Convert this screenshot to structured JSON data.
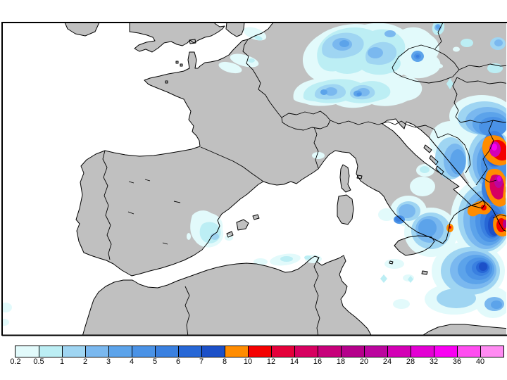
{
  "map": {
    "kind": "precipitation forecast map",
    "region": "Western Europe and Mediterranean",
    "land_color": "#c0c0c0",
    "sea_color": "#ffffff",
    "line_color": "#000000"
  },
  "colorbar": {
    "labels": [
      "0.2",
      "0.5",
      "1",
      "2",
      "3",
      "4",
      "5",
      "6",
      "7",
      "8",
      "10",
      "12",
      "14",
      "16",
      "18",
      "20",
      "24",
      "28",
      "32",
      "36",
      "40"
    ],
    "colors": [
      "#e2fafb",
      "#bceef4",
      "#9fd5f2",
      "#7ab8ef",
      "#5ca3ea",
      "#4a92e6",
      "#3a80e0",
      "#2767d6",
      "#1c50c8",
      "#ff8c00",
      "#f40000",
      "#e4003a",
      "#d70060",
      "#c7007a",
      "#b5008b",
      "#bb059e",
      "#d300b5",
      "#e300d3",
      "#f900f2",
      "#ff4df0",
      "#ff8bf2"
    ]
  }
}
